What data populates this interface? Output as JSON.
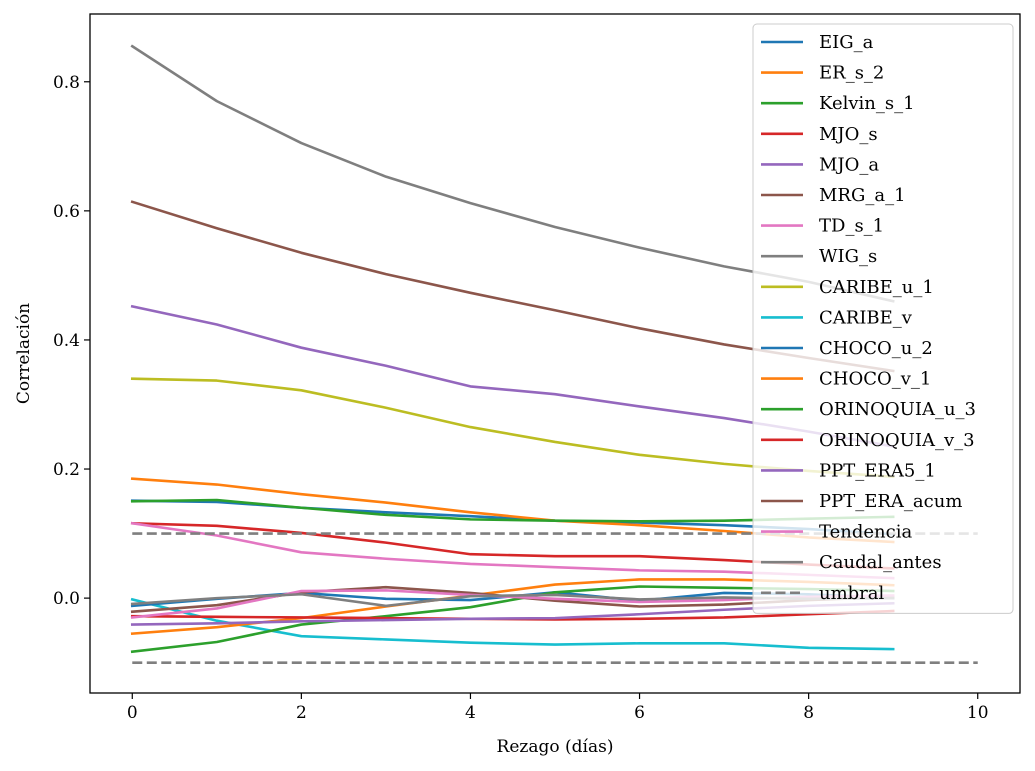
{
  "chart_data": {
    "type": "line",
    "title": "",
    "xlabel": "Rezago (días)",
    "ylabel": "Correlación",
    "xlim": [
      -0.5,
      10.5
    ],
    "ylim": [
      -0.147,
      0.905
    ],
    "xticks": [
      0,
      2,
      4,
      6,
      8,
      10
    ],
    "yticks": [
      0.0,
      0.2,
      0.4,
      0.6,
      0.8
    ],
    "xtick_labels": [
      "0",
      "2",
      "4",
      "6",
      "8",
      "10"
    ],
    "ytick_labels": [
      "0.0",
      "0.2",
      "0.4",
      "0.6",
      "0.8"
    ],
    "grid": false,
    "legend_position": "top-right",
    "x": [
      0,
      1,
      2,
      3,
      4,
      5,
      6,
      7,
      8,
      9
    ],
    "series": [
      {
        "name": "EIG_a",
        "color": "#1f77b4",
        "values": [
          0.151,
          0.149,
          0.14,
          0.133,
          0.127,
          0.12,
          0.117,
          0.113,
          0.107,
          0.099
        ]
      },
      {
        "name": "ER_s_2",
        "color": "#ff7f0e",
        "values": [
          0.185,
          0.176,
          0.161,
          0.148,
          0.133,
          0.12,
          0.113,
          0.104,
          0.094,
          0.087
        ]
      },
      {
        "name": "Kelvin_s_1",
        "color": "#2ca02c",
        "values": [
          0.15,
          0.152,
          0.14,
          0.129,
          0.122,
          0.12,
          0.119,
          0.12,
          0.123,
          0.126
        ]
      },
      {
        "name": "MJO_s",
        "color": "#d62728",
        "values": [
          0.116,
          0.112,
          0.101,
          0.086,
          0.068,
          0.065,
          0.065,
          0.059,
          0.052,
          0.046
        ]
      },
      {
        "name": "MJO_a",
        "color": "#9467bd",
        "values": [
          0.452,
          0.424,
          0.388,
          0.36,
          0.328,
          0.316,
          0.297,
          0.279,
          0.258,
          0.235
        ]
      },
      {
        "name": "MRG_a_1",
        "color": "#8c564b",
        "values": [
          0.614,
          0.573,
          0.535,
          0.502,
          0.473,
          0.446,
          0.418,
          0.393,
          0.372,
          0.352
        ]
      },
      {
        "name": "TD_s_1",
        "color": "#e377c2",
        "values": [
          0.116,
          0.097,
          0.071,
          0.061,
          0.053,
          0.048,
          0.043,
          0.041,
          0.036,
          0.031
        ]
      },
      {
        "name": "WIG_s",
        "color": "#7f7f7f",
        "values": [
          0.855,
          0.77,
          0.705,
          0.653,
          0.612,
          0.575,
          0.543,
          0.514,
          0.49,
          0.46
        ]
      },
      {
        "name": "CARIBE_u_1",
        "color": "#bcbd22",
        "values": [
          0.34,
          0.337,
          0.322,
          0.295,
          0.265,
          0.242,
          0.222,
          0.208,
          0.197,
          0.188
        ]
      },
      {
        "name": "CARIBE_v",
        "color": "#17becf",
        "values": [
          -0.002,
          -0.035,
          -0.059,
          -0.064,
          -0.069,
          -0.072,
          -0.07,
          -0.07,
          -0.077,
          -0.079
        ]
      },
      {
        "name": "CHOCO_u_2",
        "color": "#1f77b4",
        "values": [
          -0.012,
          -0.001,
          0.008,
          -0.001,
          -0.003,
          0.009,
          -0.004,
          0.008,
          0.006,
          0.0
        ]
      },
      {
        "name": "CHOCO_v_1",
        "color": "#ff7f0e",
        "values": [
          -0.055,
          -0.045,
          -0.031,
          -0.013,
          0.004,
          0.021,
          0.029,
          0.029,
          0.025,
          0.02
        ]
      },
      {
        "name": "ORINOQUIA_u_3",
        "color": "#2ca02c",
        "values": [
          -0.083,
          -0.068,
          -0.041,
          -0.028,
          -0.014,
          0.009,
          0.018,
          0.016,
          0.014,
          0.011
        ]
      },
      {
        "name": "ORINOQUIA_v_3",
        "color": "#d62728",
        "values": [
          -0.028,
          -0.029,
          -0.03,
          -0.031,
          -0.032,
          -0.033,
          -0.032,
          -0.03,
          -0.025,
          -0.02
        ]
      },
      {
        "name": "PPT_ERA5_1",
        "color": "#9467bd",
        "values": [
          -0.041,
          -0.039,
          -0.036,
          -0.034,
          -0.032,
          -0.031,
          -0.025,
          -0.018,
          -0.012,
          -0.008
        ]
      },
      {
        "name": "PPT_ERA_acum",
        "color": "#8c564b",
        "values": [
          -0.021,
          -0.011,
          0.009,
          0.017,
          0.008,
          -0.004,
          -0.013,
          -0.01,
          -0.003,
          0.002
        ]
      },
      {
        "name": "Tendencia",
        "color": "#e377c2",
        "values": [
          -0.03,
          -0.016,
          0.011,
          0.012,
          0.005,
          -0.001,
          -0.006,
          -0.003,
          0.002,
          0.004
        ]
      },
      {
        "name": "Caudal_antes",
        "color": "#7f7f7f",
        "values": [
          -0.009,
          0.0,
          0.006,
          -0.012,
          0.003,
          0.005,
          -0.002,
          0.001,
          -0.001,
          0.0
        ]
      }
    ],
    "thresholds": {
      "name": "umbral",
      "color": "#7f7f7f",
      "style": "dashed",
      "x_range": [
        0,
        10
      ],
      "values": [
        0.1,
        -0.1
      ]
    }
  }
}
